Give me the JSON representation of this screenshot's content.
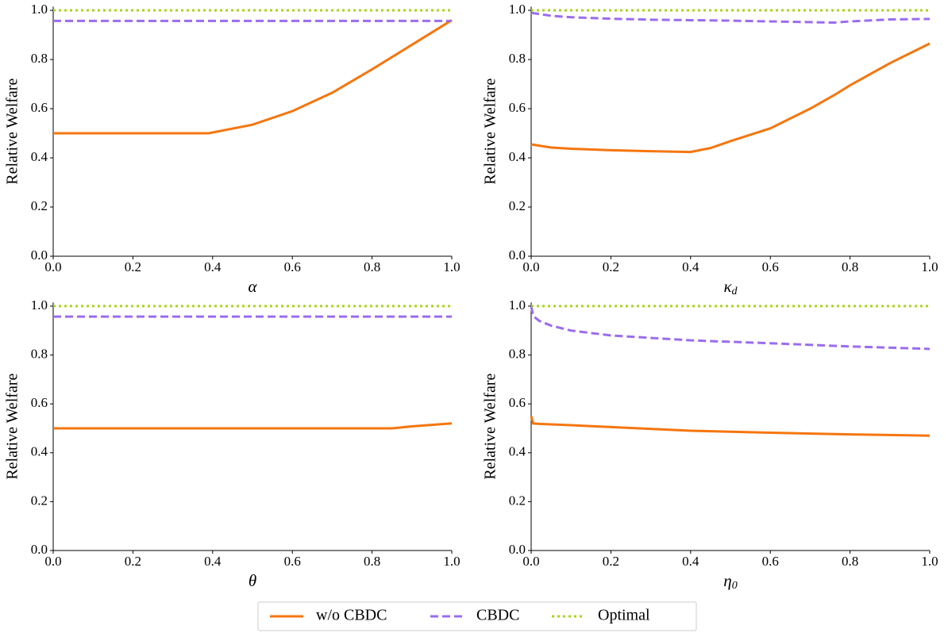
{
  "chart_data": [
    {
      "type": "line",
      "ylabel": "Relative Welfare",
      "xlabel": "α",
      "x": [
        0,
        0.1,
        0.2,
        0.3,
        0.39,
        0.5,
        0.6,
        0.7,
        0.8,
        0.9,
        1.0
      ],
      "xlim": [
        0,
        1
      ],
      "ylim": [
        0,
        1.015
      ],
      "xticks": [
        {
          "value": 0,
          "label": "0.0"
        },
        0.2,
        0.4,
        0.6,
        0.8,
        {
          "value": 1,
          "label": "1.0"
        }
      ],
      "yticks": [
        {
          "value": 0,
          "label": "0.0"
        },
        0.2,
        0.4,
        0.6,
        0.8,
        {
          "value": 1,
          "label": "1.0"
        }
      ],
      "series": [
        {
          "name": "w/o CBDC",
          "color": "#f5760f",
          "style": "solid",
          "values": [
            0.5,
            0.5,
            0.5,
            0.5,
            0.5,
            0.535,
            0.59,
            0.665,
            0.76,
            0.86,
            0.96
          ]
        },
        {
          "name": "CBDC",
          "color": "#9b6cf0",
          "style": "dashed",
          "values": [
            0.957,
            0.957,
            0.957,
            0.957,
            0.957,
            0.957,
            0.957,
            0.957,
            0.957,
            0.957,
            0.957
          ]
        },
        {
          "name": "Optimal",
          "color": "#a6d61a",
          "style": "dotted",
          "values": [
            1,
            1,
            1,
            1,
            1,
            1,
            1,
            1,
            1,
            1,
            1
          ]
        }
      ]
    },
    {
      "type": "line",
      "ylabel": "Relative Welfare",
      "xlabel": "κ",
      "xlabel_sub": "d",
      "x": [
        0,
        0.05,
        0.1,
        0.2,
        0.3,
        0.4,
        0.45,
        0.5,
        0.6,
        0.7,
        0.76,
        0.8,
        0.9,
        1.0
      ],
      "xlim": [
        0,
        1
      ],
      "ylim": [
        0,
        1.015
      ],
      "xticks": [
        {
          "value": 0,
          "label": "0.0"
        },
        0.2,
        0.4,
        0.6,
        0.8,
        {
          "value": 1,
          "label": "1.0"
        }
      ],
      "yticks": [
        {
          "value": 0,
          "label": "0.0"
        },
        0.2,
        0.4,
        0.6,
        0.8,
        {
          "value": 1,
          "label": "1.0"
        }
      ],
      "series": [
        {
          "color": "#f5760f",
          "style": "solid",
          "values": [
            0.455,
            0.442,
            0.437,
            0.431,
            0.427,
            0.424,
            0.44,
            0.468,
            0.52,
            0.6,
            0.655,
            0.695,
            0.785,
            0.865
          ]
        },
        {
          "color": "#9b6cf0",
          "style": "dashed",
          "values": [
            0.99,
            0.978,
            0.972,
            0.966,
            0.962,
            0.96,
            0.959,
            0.958,
            0.955,
            0.952,
            0.95,
            0.955,
            0.963,
            0.965
          ]
        },
        {
          "color": "#a6d61a",
          "style": "dotted",
          "values": [
            1,
            1,
            1,
            1,
            1,
            1,
            1,
            1,
            1,
            1,
            1,
            1,
            1,
            1
          ]
        }
      ]
    },
    {
      "type": "line",
      "ylabel": "Relative Welfare",
      "xlabel": "θ",
      "x": [
        0,
        0.2,
        0.4,
        0.6,
        0.85,
        0.9,
        1.0
      ],
      "xlim": [
        0,
        1
      ],
      "ylim": [
        0,
        1.015
      ],
      "xticks": [
        {
          "value": 0,
          "label": "0.0"
        },
        0.2,
        0.4,
        0.6,
        0.8,
        {
          "value": 1,
          "label": "1.0"
        }
      ],
      "yticks": [
        {
          "value": 0,
          "label": "0.0"
        },
        0.2,
        0.4,
        0.6,
        0.8,
        {
          "value": 1,
          "label": "1.0"
        }
      ],
      "series": [
        {
          "color": "#f5760f",
          "style": "solid",
          "values": [
            0.5,
            0.5,
            0.5,
            0.5,
            0.5,
            0.508,
            0.52
          ]
        },
        {
          "color": "#9b6cf0",
          "style": "dashed",
          "values": [
            0.957,
            0.957,
            0.957,
            0.957,
            0.957,
            0.957,
            0.957
          ]
        },
        {
          "color": "#a6d61a",
          "style": "dotted",
          "values": [
            1,
            1,
            1,
            1,
            1,
            1,
            1
          ]
        }
      ]
    },
    {
      "type": "line",
      "ylabel": "Relative Welfare",
      "xlabel": "η",
      "xlabel_sub": "0",
      "x": [
        0,
        0.005,
        0.02,
        0.05,
        0.1,
        0.2,
        0.4,
        0.6,
        0.8,
        1.0
      ],
      "xlim": [
        0,
        1
      ],
      "ylim": [
        0,
        1.015
      ],
      "xticks": [
        {
          "value": 0,
          "label": "0.0"
        },
        0.2,
        0.4,
        0.6,
        0.8,
        {
          "value": 1,
          "label": "1.0"
        }
      ],
      "yticks": [
        {
          "value": 0,
          "label": "0.0"
        },
        0.2,
        0.4,
        0.6,
        0.8,
        {
          "value": 1,
          "label": "1.0"
        }
      ],
      "series": [
        {
          "color": "#f5760f",
          "style": "solid",
          "values": [
            0.55,
            0.52,
            0.518,
            0.516,
            0.513,
            0.505,
            0.49,
            0.482,
            0.475,
            0.47
          ]
        },
        {
          "color": "#9b6cf0",
          "style": "dashed",
          "values": [
            1.0,
            0.96,
            0.94,
            0.92,
            0.9,
            0.88,
            0.86,
            0.848,
            0.835,
            0.825
          ]
        },
        {
          "color": "#a6d61a",
          "style": "dotted",
          "values": [
            1,
            1,
            1,
            1,
            1,
            1,
            1,
            1,
            1,
            1
          ]
        }
      ]
    }
  ]
}
